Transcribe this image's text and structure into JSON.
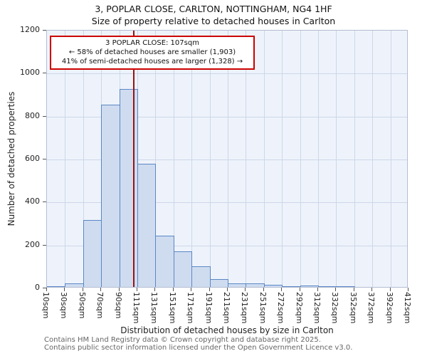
{
  "header": {
    "title": "3, POPLAR CLOSE, CARLTON, NOTTINGHAM, NG4 1HF",
    "subtitle": "Size of property relative to detached houses in Carlton"
  },
  "annotation": {
    "line1": "3 POPLAR CLOSE: 107sqm",
    "line2": "← 58% of detached houses are smaller (1,903)",
    "line3": "41% of semi-detached houses are larger (1,328) →"
  },
  "footer": {
    "line1": "Contains HM Land Registry data © Crown copyright and database right 2025.",
    "line2": "Contains public sector information licensed under the Open Government Licence v3.0."
  },
  "chart_data": {
    "type": "bar",
    "title": "3, POPLAR CLOSE, CARLTON, NOTTINGHAM, NG4 1HF",
    "subtitle": "Size of property relative to detached houses in Carlton",
    "xlabel": "Distribution of detached houses by size in Carlton",
    "ylabel": "Number of detached properties",
    "ylim": [
      0,
      1200
    ],
    "yticks": [
      0,
      200,
      400,
      600,
      800,
      1000,
      1200
    ],
    "categories": [
      "10sqm",
      "30sqm",
      "50sqm",
      "70sqm",
      "90sqm",
      "111sqm",
      "131sqm",
      "151sqm",
      "171sqm",
      "191sqm",
      "211sqm",
      "231sqm",
      "251sqm",
      "272sqm",
      "292sqm",
      "312sqm",
      "332sqm",
      "352sqm",
      "372sqm",
      "392sqm",
      "412sqm"
    ],
    "bin_edges": [
      10,
      30,
      50,
      70,
      90,
      111,
      131,
      151,
      171,
      191,
      211,
      231,
      251,
      272,
      292,
      312,
      332,
      352,
      372,
      392,
      412
    ],
    "values": [
      3,
      15,
      310,
      850,
      920,
      575,
      240,
      165,
      95,
      35,
      15,
      17,
      10,
      5,
      8,
      3,
      2,
      0,
      0,
      0
    ],
    "marker_value": 107,
    "grid": true,
    "legend": "none",
    "colors": {
      "bar_fill": "#cfdcf0",
      "bar_border": "#5b87c5",
      "marker": "#991111",
      "annotation_border": "#cc0000",
      "plot_bg": "#eef3fb",
      "gridline": "#cdd7e8"
    }
  }
}
